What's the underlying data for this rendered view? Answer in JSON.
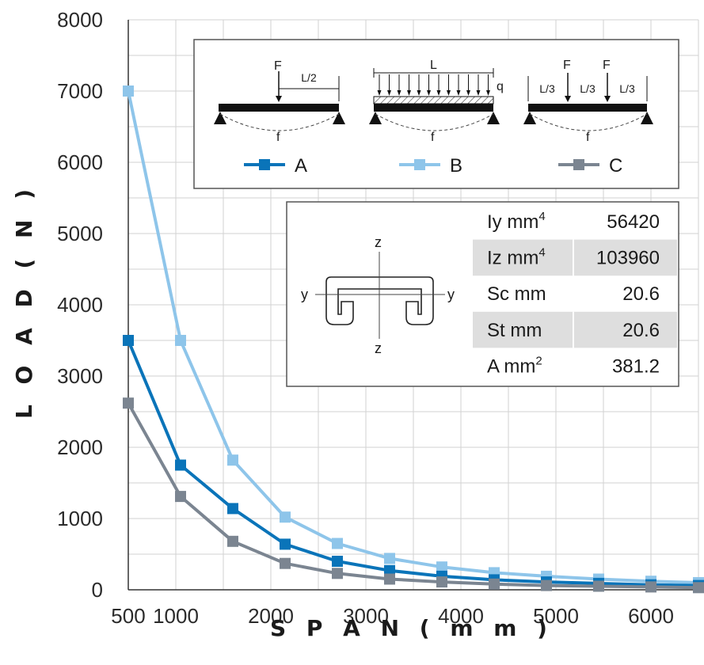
{
  "chart_data": {
    "type": "line",
    "xlabel": "S P A N  ( m m )",
    "ylabel": "L O A D  ( N )",
    "xlim": [
      500,
      6500
    ],
    "ylim": [
      0,
      8000
    ],
    "x_ticks": [
      {
        "value": 500,
        "label": "500"
      },
      {
        "value": 1000,
        "label": "1000"
      },
      {
        "value": 2000,
        "label": "2000"
      },
      {
        "value": 3000,
        "label": "3000"
      },
      {
        "value": 4000,
        "label": "4000"
      },
      {
        "value": 5000,
        "label": "5000"
      },
      {
        "value": 6000,
        "label": "6000"
      }
    ],
    "y_ticks": [
      {
        "value": 0,
        "label": "0"
      },
      {
        "value": 1000,
        "label": "1000"
      },
      {
        "value": 2000,
        "label": "2000"
      },
      {
        "value": 3000,
        "label": "3000"
      },
      {
        "value": 4000,
        "label": "4000"
      },
      {
        "value": 5000,
        "label": "5000"
      },
      {
        "value": 6000,
        "label": "6000"
      },
      {
        "value": 7000,
        "label": "7000"
      },
      {
        "value": 8000,
        "label": "8000"
      }
    ],
    "grid": true,
    "x": [
      500,
      1050,
      1600,
      2150,
      2700,
      3250,
      3800,
      4350,
      4900,
      5450,
      6000,
      6500
    ],
    "series": [
      {
        "name": "A",
        "color": "#0a74b9",
        "values": [
          3500,
          1750,
          1140,
          640,
          400,
          270,
          190,
          140,
          110,
          90,
          70,
          60
        ]
      },
      {
        "name": "B",
        "color": "#8ec5ea",
        "values": [
          7000,
          3500,
          1820,
          1020,
          650,
          440,
          320,
          240,
          190,
          150,
          120,
          100
        ]
      },
      {
        "name": "C",
        "color": "#7b8591",
        "values": [
          2620,
          1310,
          680,
          370,
          230,
          150,
          110,
          80,
          60,
          50,
          40,
          30
        ]
      }
    ],
    "legend_position": "top-right",
    "load_diagram": {
      "A": {
        "force_label": "F",
        "half_span_label": "L/2",
        "deflection_label": "f"
      },
      "B": {
        "span_label": "L",
        "load_label": "q",
        "deflection_label": "f"
      },
      "C": {
        "force_labels": [
          "F",
          "F"
        ],
        "third_labels": [
          "L/3",
          "L/3",
          "L/3"
        ],
        "deflection_label": "f"
      }
    },
    "section": {
      "axis_labels": {
        "top": "z",
        "bottom": "z",
        "left": "y",
        "right": "y"
      }
    },
    "properties_table": [
      {
        "symbol": "Iy",
        "unit": "mm",
        "sup": "4",
        "value": "56420"
      },
      {
        "symbol": "Iz",
        "unit": "mm",
        "sup": "4",
        "value": "103960"
      },
      {
        "symbol": "Sc",
        "unit": "mm",
        "sup": "",
        "value": "20.6"
      },
      {
        "symbol": "St",
        "unit": "mm",
        "sup": "",
        "value": "20.6"
      },
      {
        "symbol": "A",
        "unit": "mm",
        "sup": "2",
        "value": "381.2"
      }
    ]
  }
}
